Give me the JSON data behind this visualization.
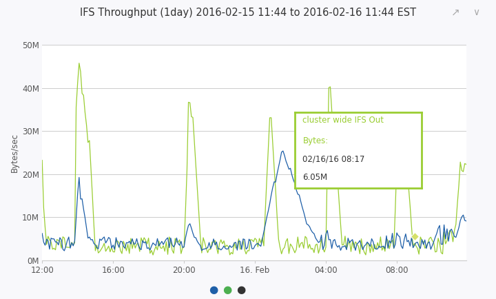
{
  "title": "IFS Throughput (1day) 2016-02-15 11:44 to 2016-02-16 11:44 EST",
  "ylabel": "Bytes/sec",
  "yticks": [
    0,
    10000000,
    20000000,
    30000000,
    40000000,
    50000000
  ],
  "ytick_labels": [
    "0M",
    "10M",
    "20M",
    "30M",
    "40M",
    "50M"
  ],
  "xtick_labels": [
    "12:00",
    "16:00",
    "20:00",
    "16. Feb",
    "04:00",
    "08:00"
  ],
  "bg_color": "#f8f8fb",
  "plot_bg_color": "#ffffff",
  "line_color_green": "#9acd32",
  "line_color_blue": "#1e5fa8",
  "tooltip_border_color": "#9acd32",
  "tooltip_text_color_green": "#9acd32",
  "tooltip_text_color_dark": "#333333",
  "tooltip_line1": "cluster wide IFS Out",
  "tooltip_line2": "Bytes:",
  "tooltip_date": "02/16/16 08:17",
  "tooltip_value": "6.05M",
  "dot_colors": [
    "#1e5fa8",
    "#4caf50",
    "#333333"
  ],
  "ylim": [
    0,
    50000000
  ],
  "num_points": 288
}
